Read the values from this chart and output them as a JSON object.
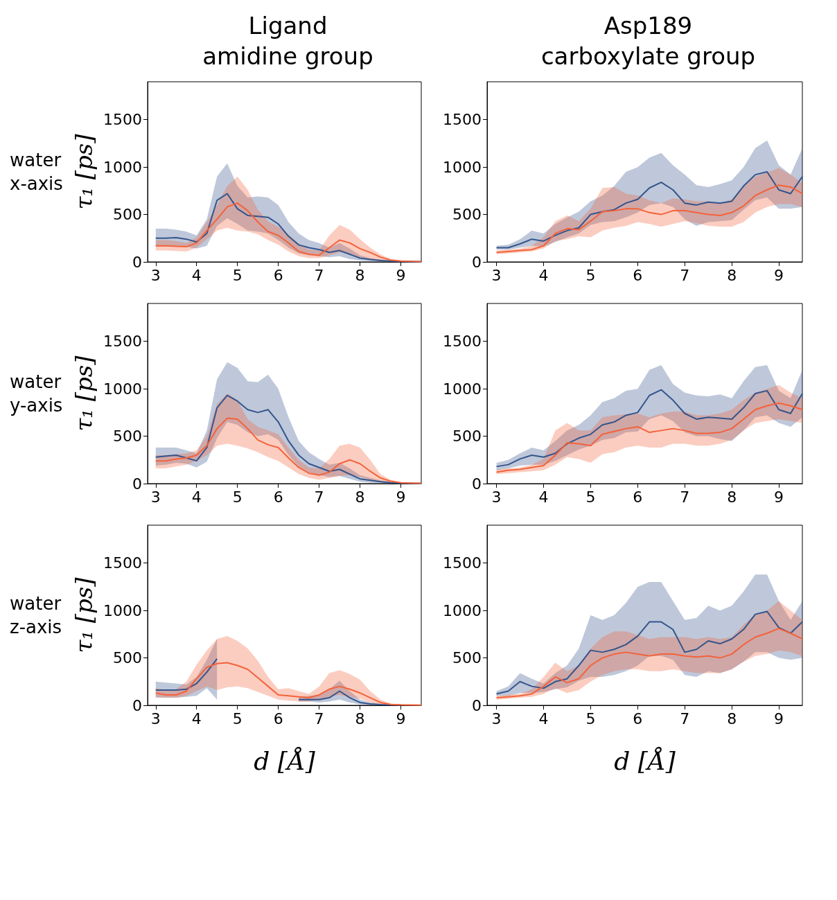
{
  "chart_data": [
    {
      "type": "line",
      "title": "Ligand\namidine group",
      "ylabel": "τ₁ [ps]",
      "annotations": [
        "water\nx-axis"
      ],
      "xlim": [
        2.8,
        9.5
      ],
      "ylim": [
        0,
        1900
      ],
      "xticks": [
        3,
        4,
        5,
        6,
        7,
        8,
        9
      ],
      "yticks": [
        0,
        500,
        1000,
        1500
      ],
      "x": [
        3,
        3.25,
        3.5,
        3.75,
        4,
        4.25,
        4.5,
        4.75,
        5,
        5.25,
        5.5,
        5.75,
        6,
        6.25,
        6.5,
        6.75,
        7,
        7.25,
        7.5,
        7.75,
        8,
        8.25,
        8.5,
        8.75,
        9,
        9.25,
        9.5
      ],
      "series": [
        {
          "color": "#34558b",
          "values": [
            250,
            250,
            255,
            240,
            210,
            300,
            650,
            720,
            560,
            490,
            480,
            470,
            400,
            270,
            180,
            150,
            130,
            100,
            120,
            80,
            40,
            25,
            15,
            8,
            5,
            3,
            2
          ],
          "upper": [
            350,
            350,
            340,
            320,
            280,
            450,
            900,
            1040,
            800,
            680,
            690,
            680,
            600,
            420,
            300,
            230,
            200,
            150,
            200,
            140,
            70,
            40,
            25,
            15,
            8,
            5,
            3
          ],
          "lower": [
            160,
            160,
            170,
            160,
            140,
            170,
            380,
            460,
            400,
            330,
            320,
            300,
            230,
            150,
            90,
            70,
            60,
            50,
            60,
            30,
            15,
            8,
            5,
            3,
            2,
            1,
            0
          ]
        },
        {
          "color": "#f4623a",
          "values": [
            170,
            170,
            165,
            160,
            200,
            330,
            450,
            580,
            620,
            540,
            420,
            320,
            280,
            200,
            110,
            80,
            70,
            150,
            230,
            200,
            140,
            100,
            50,
            20,
            10,
            5,
            3
          ],
          "upper": [
            230,
            230,
            220,
            200,
            260,
            420,
            600,
            800,
            900,
            760,
            550,
            430,
            370,
            290,
            180,
            130,
            120,
            280,
            390,
            340,
            240,
            150,
            80,
            30,
            15,
            8,
            5
          ],
          "lower": [
            120,
            120,
            115,
            110,
            150,
            240,
            330,
            360,
            330,
            320,
            290,
            230,
            180,
            110,
            60,
            40,
            40,
            70,
            100,
            80,
            50,
            30,
            10,
            5,
            2,
            1,
            0
          ]
        }
      ]
    },
    {
      "type": "line",
      "title": "Asp189\ncarboxylate group",
      "xlim": [
        2.8,
        9.5
      ],
      "ylim": [
        0,
        1900
      ],
      "xticks": [
        3,
        4,
        5,
        6,
        7,
        8,
        9
      ],
      "yticks": [
        0,
        500,
        1000,
        1500
      ],
      "x": [
        3,
        3.25,
        3.5,
        3.75,
        4,
        4.25,
        4.5,
        4.75,
        5,
        5.25,
        5.5,
        5.75,
        6,
        6.25,
        6.5,
        6.75,
        7,
        7.25,
        7.5,
        7.75,
        8,
        8.25,
        8.5,
        8.75,
        9,
        9.25,
        9.5
      ],
      "series": [
        {
          "color": "#34558b",
          "values": [
            150,
            150,
            190,
            240,
            220,
            280,
            330,
            360,
            500,
            530,
            550,
            620,
            660,
            780,
            840,
            760,
            620,
            600,
            630,
            620,
            640,
            800,
            920,
            950,
            760,
            720,
            900
          ],
          "upper": [
            170,
            180,
            240,
            330,
            300,
            400,
            470,
            530,
            640,
            700,
            800,
            950,
            1000,
            1100,
            1150,
            1020,
            920,
            810,
            790,
            820,
            860,
            1000,
            1200,
            1280,
            1020,
            920,
            1200
          ],
          "lower": [
            130,
            130,
            150,
            170,
            160,
            210,
            260,
            300,
            390,
            420,
            430,
            470,
            520,
            600,
            620,
            580,
            450,
            380,
            420,
            430,
            440,
            550,
            650,
            680,
            560,
            560,
            580
          ]
        },
        {
          "color": "#f4623a",
          "values": [
            100,
            110,
            120,
            130,
            170,
            300,
            350,
            340,
            430,
            530,
            540,
            560,
            560,
            520,
            500,
            540,
            540,
            520,
            500,
            490,
            520,
            590,
            700,
            760,
            810,
            790,
            720
          ],
          "upper": [
            120,
            130,
            140,
            170,
            260,
            430,
            490,
            430,
            560,
            780,
            790,
            720,
            700,
            650,
            620,
            670,
            660,
            640,
            640,
            620,
            660,
            800,
            900,
            940,
            990,
            920,
            830
          ],
          "lower": [
            80,
            90,
            100,
            110,
            140,
            220,
            240,
            270,
            260,
            330,
            360,
            380,
            420,
            400,
            370,
            400,
            430,
            410,
            380,
            370,
            370,
            420,
            520,
            580,
            610,
            610,
            580
          ]
        }
      ]
    },
    {
      "type": "line",
      "ylabel": "τ₁ [ps]",
      "annotations": [
        "water\ny-axis"
      ],
      "xlim": [
        2.8,
        9.5
      ],
      "ylim": [
        0,
        1900
      ],
      "xticks": [
        3,
        4,
        5,
        6,
        7,
        8,
        9
      ],
      "yticks": [
        0,
        500,
        1000,
        1500
      ],
      "x": [
        3,
        3.25,
        3.5,
        3.75,
        4,
        4.25,
        4.5,
        4.75,
        5,
        5.25,
        5.5,
        5.75,
        6,
        6.25,
        6.5,
        6.75,
        7,
        7.25,
        7.5,
        7.75,
        8,
        8.25,
        8.5,
        8.75,
        9,
        9.25,
        9.5
      ],
      "series": [
        {
          "color": "#34558b",
          "values": [
            280,
            290,
            300,
            270,
            240,
            380,
            800,
            930,
            870,
            780,
            750,
            780,
            650,
            450,
            300,
            210,
            170,
            130,
            150,
            100,
            50,
            35,
            20,
            10,
            5,
            3,
            2
          ],
          "upper": [
            380,
            380,
            380,
            350,
            320,
            560,
            1100,
            1280,
            1220,
            1080,
            1070,
            1150,
            1000,
            700,
            450,
            330,
            260,
            200,
            220,
            160,
            90,
            60,
            35,
            20,
            10,
            5,
            3
          ],
          "lower": [
            190,
            200,
            220,
            210,
            170,
            230,
            480,
            650,
            620,
            540,
            500,
            520,
            460,
            300,
            180,
            120,
            90,
            70,
            80,
            50,
            20,
            10,
            5,
            3,
            2,
            1,
            0
          ]
        },
        {
          "color": "#f4623a",
          "values": [
            240,
            240,
            260,
            270,
            300,
            400,
            580,
            690,
            680,
            580,
            460,
            410,
            380,
            270,
            170,
            110,
            90,
            120,
            210,
            250,
            210,
            130,
            60,
            25,
            10,
            5,
            3
          ],
          "upper": [
            300,
            300,
            310,
            320,
            350,
            500,
            840,
            950,
            880,
            680,
            600,
            560,
            520,
            380,
            250,
            170,
            160,
            260,
            400,
            420,
            380,
            250,
            100,
            40,
            15,
            8,
            5
          ],
          "lower": [
            160,
            160,
            180,
            200,
            240,
            300,
            400,
            420,
            400,
            370,
            330,
            280,
            240,
            170,
            100,
            60,
            40,
            60,
            80,
            90,
            70,
            40,
            15,
            5,
            2,
            1,
            0
          ]
        }
      ]
    },
    {
      "type": "line",
      "xlim": [
        2.8,
        9.5
      ],
      "ylim": [
        0,
        1900
      ],
      "xticks": [
        3,
        4,
        5,
        6,
        7,
        8,
        9
      ],
      "yticks": [
        0,
        500,
        1000,
        1500
      ],
      "x": [
        3,
        3.25,
        3.5,
        3.75,
        4,
        4.25,
        4.5,
        4.75,
        5,
        5.25,
        5.5,
        5.75,
        6,
        6.25,
        6.5,
        6.75,
        7,
        7.25,
        7.5,
        7.75,
        8,
        8.25,
        8.5,
        8.75,
        9,
        9.25,
        9.5
      ],
      "series": [
        {
          "color": "#34558b",
          "values": [
            180,
            200,
            260,
            300,
            280,
            320,
            420,
            480,
            520,
            620,
            650,
            720,
            750,
            930,
            990,
            880,
            740,
            680,
            700,
            690,
            680,
            800,
            950,
            980,
            780,
            740,
            950
          ],
          "upper": [
            220,
            250,
            320,
            380,
            350,
            450,
            560,
            620,
            720,
            860,
            900,
            980,
            1000,
            1200,
            1250,
            1050,
            960,
            930,
            920,
            940,
            900,
            1080,
            1230,
            1250,
            980,
            900,
            1200
          ],
          "lower": [
            140,
            160,
            190,
            200,
            200,
            240,
            300,
            360,
            400,
            460,
            480,
            540,
            550,
            680,
            720,
            660,
            540,
            500,
            500,
            470,
            450,
            560,
            700,
            720,
            640,
            600,
            700
          ]
        },
        {
          "color": "#f4623a",
          "values": [
            120,
            140,
            150,
            170,
            190,
            300,
            430,
            420,
            400,
            520,
            550,
            580,
            600,
            540,
            560,
            580,
            560,
            530,
            530,
            540,
            580,
            680,
            780,
            820,
            850,
            820,
            780
          ],
          "upper": [
            150,
            160,
            170,
            200,
            260,
            560,
            640,
            560,
            560,
            700,
            720,
            730,
            740,
            700,
            740,
            760,
            760,
            720,
            720,
            740,
            780,
            880,
            960,
            1000,
            1040,
            960,
            900
          ],
          "lower": [
            100,
            110,
            120,
            130,
            140,
            200,
            280,
            260,
            220,
            310,
            330,
            380,
            400,
            380,
            380,
            420,
            420,
            400,
            400,
            420,
            460,
            560,
            640,
            660,
            680,
            660,
            640
          ]
        }
      ]
    },
    {
      "type": "line",
      "ylabel": "τ₁ [ps]",
      "xlabel": "d [Å]",
      "annotations": [
        "water\nz-axis"
      ],
      "xlim": [
        2.8,
        9.5
      ],
      "ylim": [
        0,
        1900
      ],
      "xticks": [
        3,
        4,
        5,
        6,
        7,
        8,
        9
      ],
      "yticks": [
        0,
        500,
        1000,
        1500
      ],
      "x": [
        3,
        3.25,
        3.5,
        3.75,
        4,
        4.25,
        4.5,
        4.75,
        5,
        5.25,
        5.5,
        5.75,
        6,
        6.25,
        6.5,
        6.75,
        7,
        7.25,
        7.5,
        7.75,
        8,
        8.25,
        8.5,
        8.75,
        9,
        9.25,
        9.5
      ],
      "series": [
        {
          "color": "#34558b",
          "values": [
            160,
            160,
            160,
            170,
            230,
            350,
            490,
            null,
            null,
            null,
            null,
            null,
            null,
            null,
            60,
            60,
            60,
            80,
            150,
            80,
            30,
            15,
            8,
            5,
            3,
            null,
            null
          ],
          "upper": [
            250,
            240,
            230,
            220,
            300,
            480,
            700,
            null,
            null,
            null,
            null,
            null,
            null,
            null,
            90,
            100,
            110,
            170,
            260,
            150,
            60,
            30,
            15,
            8,
            5,
            null,
            null
          ],
          "lower": [
            80,
            80,
            80,
            90,
            100,
            180,
            60,
            null,
            null,
            null,
            null,
            null,
            null,
            null,
            40,
            40,
            30,
            40,
            60,
            30,
            10,
            5,
            3,
            2,
            1,
            null,
            null
          ]
        },
        {
          "color": "#f4623a",
          "values": [
            130,
            110,
            110,
            150,
            280,
            400,
            440,
            450,
            420,
            380,
            290,
            200,
            110,
            100,
            90,
            80,
            110,
            170,
            200,
            170,
            130,
            80,
            30,
            10,
            5,
            3,
            2
          ],
          "upper": [
            180,
            160,
            170,
            250,
            430,
            580,
            700,
            730,
            680,
            600,
            470,
            300,
            170,
            180,
            150,
            120,
            200,
            340,
            370,
            330,
            270,
            150,
            60,
            20,
            10,
            5,
            3
          ],
          "lower": [
            90,
            80,
            80,
            100,
            150,
            200,
            160,
            190,
            200,
            180,
            140,
            100,
            60,
            50,
            40,
            40,
            60,
            90,
            110,
            90,
            70,
            30,
            10,
            5,
            2,
            1,
            0
          ]
        }
      ]
    },
    {
      "type": "line",
      "xlabel": "d [Å]",
      "xlim": [
        2.8,
        9.5
      ],
      "ylim": [
        0,
        1900
      ],
      "xticks": [
        3,
        4,
        5,
        6,
        7,
        8,
        9
      ],
      "yticks": [
        0,
        500,
        1000,
        1500
      ],
      "x": [
        3,
        3.25,
        3.5,
        3.75,
        4,
        4.25,
        4.5,
        4.75,
        5,
        5.25,
        5.5,
        5.75,
        6,
        6.25,
        6.5,
        6.75,
        7,
        7.25,
        7.5,
        7.75,
        8,
        8.25,
        8.5,
        8.75,
        9,
        9.25,
        9.5
      ],
      "series": [
        {
          "color": "#34558b",
          "values": [
            120,
            150,
            250,
            200,
            180,
            250,
            280,
            420,
            580,
            560,
            590,
            640,
            730,
            880,
            880,
            800,
            560,
            590,
            680,
            650,
            700,
            800,
            960,
            990,
            820,
            760,
            880
          ],
          "upper": [
            150,
            200,
            340,
            280,
            230,
            340,
            420,
            600,
            950,
            900,
            950,
            1080,
            1250,
            1300,
            1300,
            1100,
            900,
            920,
            1050,
            1000,
            1050,
            1200,
            1380,
            1380,
            1100,
            900,
            1100
          ],
          "lower": [
            100,
            100,
            130,
            130,
            140,
            170,
            190,
            260,
            300,
            300,
            320,
            360,
            420,
            520,
            520,
            480,
            320,
            300,
            360,
            340,
            380,
            460,
            560,
            560,
            500,
            480,
            500
          ]
        },
        {
          "color": "#f4623a",
          "values": [
            80,
            90,
            100,
            120,
            200,
            300,
            240,
            280,
            420,
            500,
            540,
            560,
            540,
            520,
            540,
            540,
            520,
            510,
            520,
            500,
            540,
            640,
            720,
            760,
            810,
            760,
            700
          ],
          "upper": [
            100,
            110,
            120,
            170,
            300,
            450,
            360,
            420,
            600,
            720,
            780,
            780,
            740,
            700,
            720,
            720,
            720,
            700,
            720,
            700,
            720,
            850,
            960,
            1000,
            1100,
            1000,
            900
          ],
          "lower": [
            60,
            70,
            80,
            90,
            120,
            180,
            130,
            160,
            250,
            320,
            360,
            380,
            380,
            360,
            360,
            380,
            360,
            340,
            340,
            340,
            380,
            460,
            520,
            540,
            580,
            560,
            520
          ]
        }
      ]
    }
  ]
}
